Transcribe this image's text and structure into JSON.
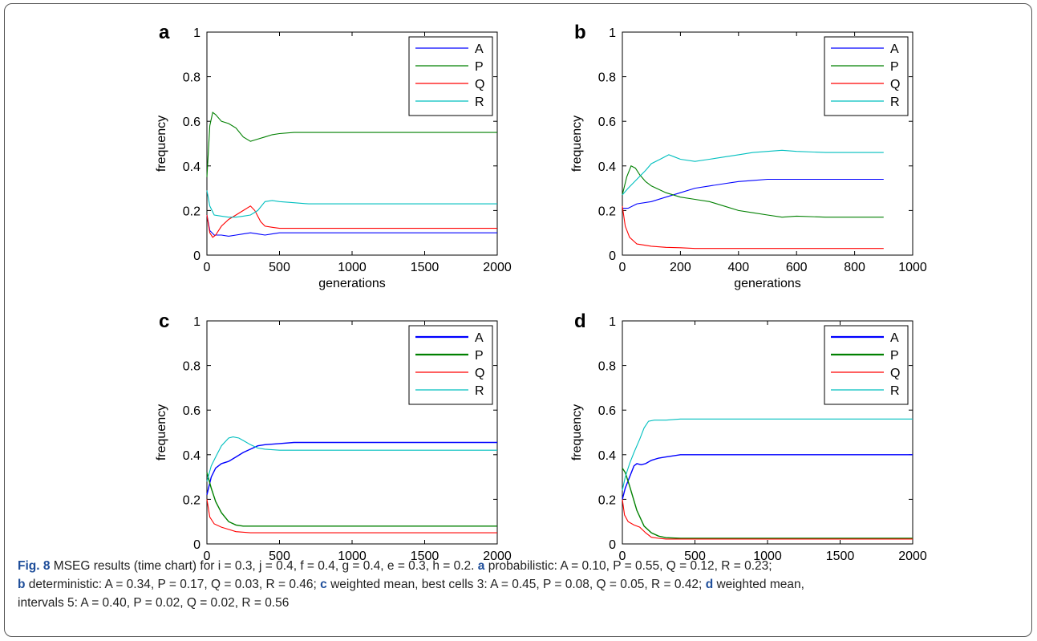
{
  "caption": {
    "fig_label": "Fig. 8",
    "line1": "MSEG results (time chart) for i = 0.3, j = 0.4, f = 0.4, g = 0.4, e = 0.3, h = 0.2.",
    "a_label": "a",
    "a_text": "probabilistic: A = 0.10, P = 0.55, Q = 0.12, R = 0.23;",
    "b_label": "b",
    "b_text": "deterministic: A = 0.34, P = 0.17, Q = 0.03, R = 0.46;",
    "c_label": "c",
    "c_text": "weighted mean, best cells 3: A = 0.45, P = 0.08, Q = 0.05, R = 0.42;",
    "d_label": "d",
    "d_text": "weighted mean,",
    "d_text2": "intervals 5: A = 0.40, P = 0.02, Q = 0.02, R = 0.56"
  },
  "colors": {
    "A": "#0000ff",
    "P": "#008000",
    "Q": "#ff0000",
    "R": "#00bfbf"
  },
  "chart_data": [
    {
      "panel": "a",
      "type": "line",
      "xlabel": "generations",
      "ylabel": "frequency",
      "xlim": [
        0,
        2000
      ],
      "ylim": [
        0,
        1
      ],
      "xticks": [
        0,
        500,
        1000,
        1500,
        2000
      ],
      "yticks": [
        0,
        0.2,
        0.4,
        0.6,
        0.8,
        1
      ],
      "yticklabels": [
        "0",
        "0.2",
        "0.4",
        "0.6",
        "0.8",
        "1"
      ],
      "legend": "top-right",
      "series": [
        {
          "name": "A",
          "x": [
            0,
            20,
            50,
            100,
            150,
            200,
            250,
            300,
            350,
            400,
            450,
            500,
            700,
            1000,
            1500,
            2000
          ],
          "y": [
            0.18,
            0.11,
            0.09,
            0.09,
            0.085,
            0.09,
            0.095,
            0.1,
            0.095,
            0.09,
            0.095,
            0.1,
            0.1,
            0.1,
            0.1,
            0.1
          ]
        },
        {
          "name": "P",
          "x": [
            0,
            20,
            40,
            60,
            100,
            150,
            200,
            250,
            300,
            350,
            400,
            450,
            500,
            600,
            700,
            1000,
            1500,
            2000
          ],
          "y": [
            0.35,
            0.58,
            0.64,
            0.63,
            0.6,
            0.59,
            0.57,
            0.53,
            0.51,
            0.52,
            0.53,
            0.54,
            0.545,
            0.55,
            0.55,
            0.55,
            0.55,
            0.55
          ]
        },
        {
          "name": "Q",
          "x": [
            0,
            20,
            40,
            60,
            100,
            150,
            200,
            250,
            300,
            330,
            370,
            400,
            450,
            500,
            600,
            700,
            1000,
            1500,
            2000
          ],
          "y": [
            0.18,
            0.1,
            0.08,
            0.09,
            0.13,
            0.16,
            0.18,
            0.2,
            0.22,
            0.2,
            0.15,
            0.13,
            0.125,
            0.12,
            0.12,
            0.12,
            0.12,
            0.12,
            0.12
          ]
        },
        {
          "name": "R",
          "x": [
            0,
            20,
            50,
            100,
            150,
            200,
            250,
            300,
            350,
            400,
            450,
            500,
            600,
            700,
            1000,
            1500,
            2000
          ],
          "y": [
            0.29,
            0.22,
            0.18,
            0.175,
            0.17,
            0.17,
            0.175,
            0.18,
            0.2,
            0.24,
            0.245,
            0.24,
            0.235,
            0.23,
            0.23,
            0.23,
            0.23
          ]
        }
      ]
    },
    {
      "panel": "b",
      "type": "line",
      "xlabel": "generations",
      "ylabel": "frequency",
      "xlim": [
        0,
        1000
      ],
      "ylim": [
        0,
        1
      ],
      "xticks": [
        0,
        200,
        400,
        600,
        800,
        1000
      ],
      "yticks": [
        0,
        0.2,
        0.4,
        0.6,
        0.8,
        1
      ],
      "yticklabels": [
        "0",
        "0.2",
        "0.4",
        "0.6",
        "0.8",
        "1"
      ],
      "legend": "top-right",
      "series": [
        {
          "name": "A",
          "x": [
            0,
            20,
            50,
            100,
            150,
            200,
            250,
            300,
            350,
            400,
            450,
            500,
            600,
            700,
            800,
            900
          ],
          "y": [
            0.21,
            0.21,
            0.23,
            0.24,
            0.26,
            0.28,
            0.3,
            0.31,
            0.32,
            0.33,
            0.335,
            0.34,
            0.34,
            0.34,
            0.34,
            0.34
          ]
        },
        {
          "name": "P",
          "x": [
            0,
            15,
            30,
            45,
            60,
            80,
            100,
            150,
            200,
            250,
            300,
            350,
            400,
            450,
            500,
            550,
            600,
            700,
            800,
            900
          ],
          "y": [
            0.27,
            0.35,
            0.4,
            0.39,
            0.36,
            0.33,
            0.31,
            0.28,
            0.26,
            0.25,
            0.24,
            0.22,
            0.2,
            0.19,
            0.18,
            0.17,
            0.175,
            0.17,
            0.17,
            0.17
          ]
        },
        {
          "name": "Q",
          "x": [
            0,
            10,
            25,
            50,
            100,
            150,
            200,
            250,
            300,
            400,
            500,
            700,
            900
          ],
          "y": [
            0.22,
            0.13,
            0.08,
            0.05,
            0.04,
            0.035,
            0.033,
            0.03,
            0.03,
            0.03,
            0.03,
            0.03,
            0.03
          ]
        },
        {
          "name": "R",
          "x": [
            0,
            20,
            50,
            80,
            100,
            130,
            160,
            180,
            200,
            250,
            300,
            350,
            400,
            450,
            500,
            550,
            600,
            700,
            800,
            900
          ],
          "y": [
            0.27,
            0.3,
            0.34,
            0.38,
            0.41,
            0.43,
            0.45,
            0.44,
            0.43,
            0.42,
            0.43,
            0.44,
            0.45,
            0.46,
            0.465,
            0.47,
            0.465,
            0.46,
            0.46,
            0.46
          ]
        }
      ]
    },
    {
      "panel": "c",
      "type": "line",
      "xlabel": "",
      "ylabel": "frequency",
      "xlim": [
        0,
        2000
      ],
      "ylim": [
        0,
        1
      ],
      "xticks": [
        0,
        500,
        1000,
        1500,
        2000
      ],
      "yticks": [
        0,
        0.2,
        0.4,
        0.6,
        0.8,
        1
      ],
      "yticklabels": [
        "0",
        "0.2",
        "0.4",
        "0.6",
        "0.8",
        "1"
      ],
      "legend": "top-right",
      "series": [
        {
          "name": "A",
          "x": [
            0,
            30,
            60,
            100,
            150,
            200,
            250,
            300,
            350,
            400,
            500,
            600,
            800,
            1000,
            1500,
            2000
          ],
          "y": [
            0.22,
            0.3,
            0.34,
            0.36,
            0.37,
            0.39,
            0.41,
            0.425,
            0.44,
            0.445,
            0.45,
            0.455,
            0.455,
            0.455,
            0.455,
            0.455
          ]
        },
        {
          "name": "P",
          "x": [
            0,
            30,
            60,
            100,
            150,
            200,
            250,
            300,
            400,
            500,
            700,
            1000,
            1500,
            2000
          ],
          "y": [
            0.32,
            0.25,
            0.19,
            0.14,
            0.1,
            0.085,
            0.08,
            0.08,
            0.08,
            0.08,
            0.08,
            0.08,
            0.08,
            0.08
          ]
        },
        {
          "name": "Q",
          "x": [
            0,
            20,
            50,
            100,
            150,
            200,
            300,
            400,
            500,
            700,
            1000,
            1500,
            2000
          ],
          "y": [
            0.2,
            0.12,
            0.09,
            0.075,
            0.065,
            0.055,
            0.05,
            0.05,
            0.05,
            0.05,
            0.05,
            0.05,
            0.05
          ]
        },
        {
          "name": "R",
          "x": [
            0,
            30,
            60,
            100,
            150,
            180,
            220,
            260,
            300,
            350,
            400,
            500,
            600,
            800,
            1000,
            1500,
            2000
          ],
          "y": [
            0.28,
            0.35,
            0.39,
            0.44,
            0.475,
            0.48,
            0.475,
            0.46,
            0.445,
            0.43,
            0.425,
            0.42,
            0.42,
            0.42,
            0.42,
            0.42,
            0.42
          ]
        }
      ]
    },
    {
      "panel": "d",
      "type": "line",
      "xlabel": "",
      "ylabel": "frequency",
      "xlim": [
        0,
        2000
      ],
      "ylim": [
        0,
        1
      ],
      "xticks": [
        0,
        500,
        1000,
        1500,
        2000
      ],
      "yticks": [
        0,
        0.2,
        0.4,
        0.6,
        0.8,
        1
      ],
      "yticklabels": [
        "0",
        "0.2",
        "0.4",
        "0.6",
        "0.8",
        "1"
      ],
      "legend": "top-right",
      "series": [
        {
          "name": "A",
          "x": [
            0,
            20,
            50,
            80,
            100,
            130,
            160,
            200,
            250,
            300,
            350,
            400,
            500,
            700,
            1000,
            1500,
            2000
          ],
          "y": [
            0.2,
            0.25,
            0.3,
            0.35,
            0.36,
            0.355,
            0.36,
            0.375,
            0.385,
            0.39,
            0.395,
            0.4,
            0.4,
            0.4,
            0.4,
            0.4,
            0.4
          ]
        },
        {
          "name": "P",
          "x": [
            0,
            20,
            50,
            100,
            150,
            200,
            250,
            300,
            400,
            500,
            1000,
            1500,
            2000
          ],
          "y": [
            0.34,
            0.32,
            0.26,
            0.15,
            0.08,
            0.05,
            0.035,
            0.028,
            0.025,
            0.025,
            0.025,
            0.025,
            0.025
          ]
        },
        {
          "name": "Q",
          "x": [
            0,
            15,
            40,
            80,
            120,
            160,
            200,
            250,
            300,
            400,
            500,
            1000,
            1500,
            2000
          ],
          "y": [
            0.2,
            0.13,
            0.1,
            0.085,
            0.075,
            0.05,
            0.03,
            0.025,
            0.022,
            0.022,
            0.022,
            0.022,
            0.022,
            0.022
          ]
        },
        {
          "name": "R",
          "x": [
            0,
            20,
            50,
            80,
            120,
            150,
            180,
            220,
            300,
            400,
            500,
            1000,
            1500,
            2000
          ],
          "y": [
            0.24,
            0.3,
            0.36,
            0.41,
            0.47,
            0.52,
            0.55,
            0.555,
            0.555,
            0.56,
            0.56,
            0.56,
            0.56,
            0.56
          ]
        }
      ]
    }
  ]
}
